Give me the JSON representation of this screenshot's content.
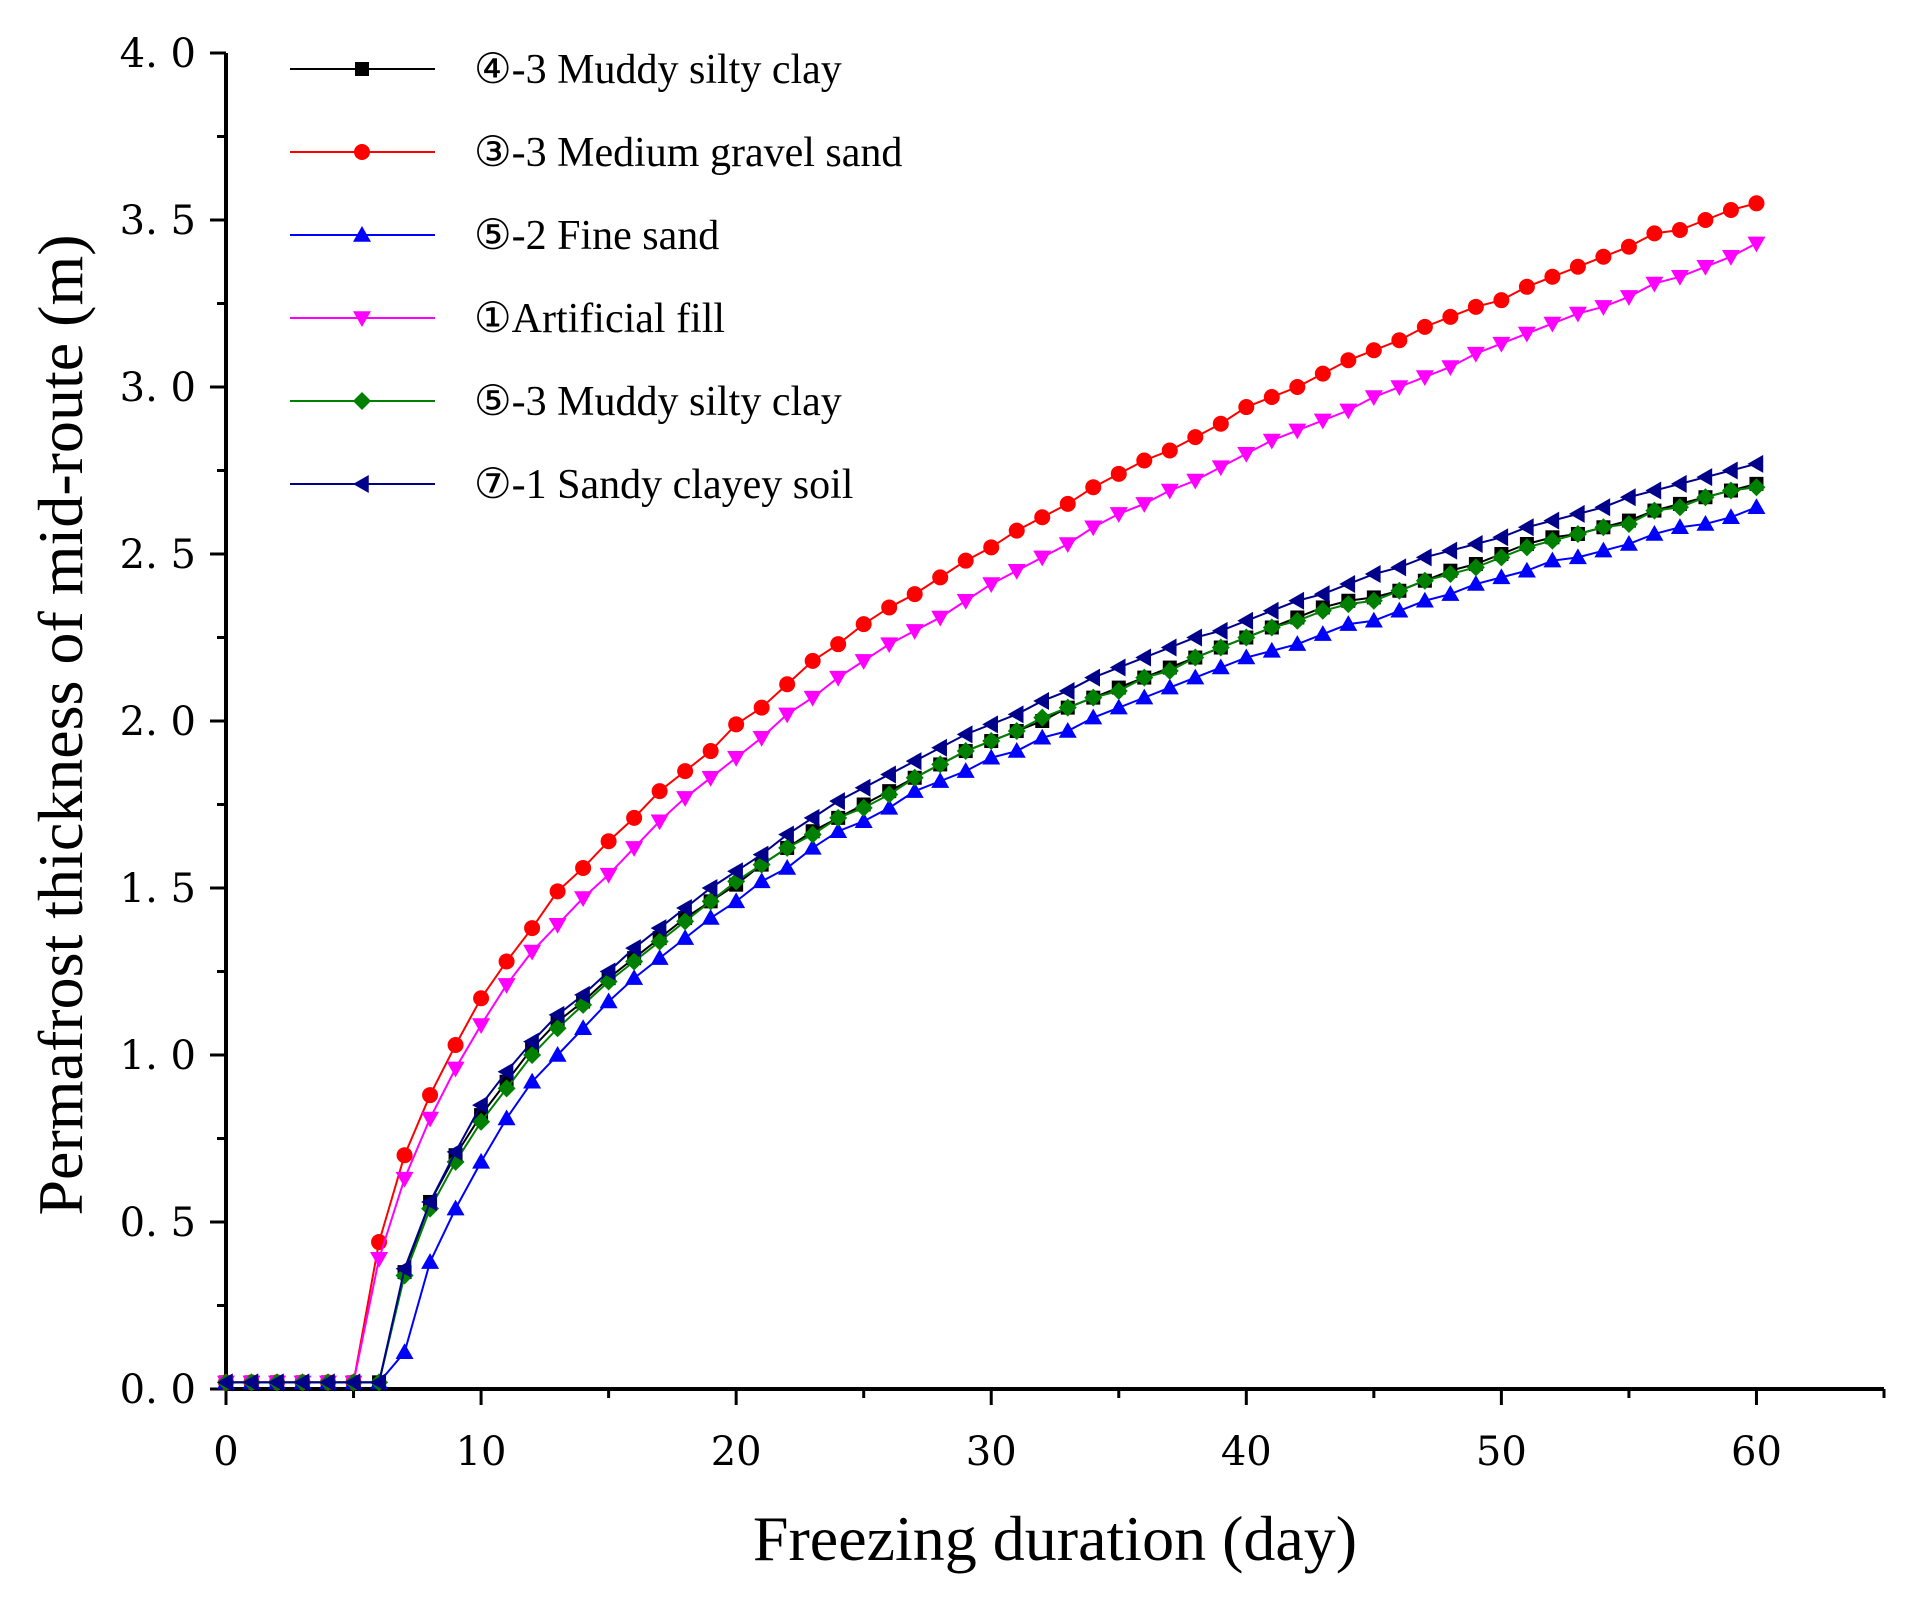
{
  "chart_data": {
    "type": "line",
    "title": "",
    "xlabel": "Freezing duration (day)",
    "ylabel": "Permafrost thickness of mid-route (m)",
    "xlim": [
      0,
      65
    ],
    "ylim": [
      0,
      4
    ],
    "x_ticks": [
      "0",
      "10",
      "20",
      "30",
      "40",
      "50",
      "60"
    ],
    "y_ticks": [
      "0. 0",
      "0. 5",
      "1. 0",
      "1. 5",
      "2. 0",
      "2. 5",
      "3. 0",
      "3. 5",
      "4. 0"
    ],
    "grid": false,
    "legend_position": "top-left",
    "series": [
      {
        "name": "④-3 Muddy silty clay",
        "color": "#000000",
        "marker": "square",
        "x": [
          0,
          1,
          2,
          3,
          4,
          5,
          6,
          7,
          8,
          9,
          10,
          11,
          12,
          13,
          14,
          15,
          16,
          17,
          18,
          19,
          20,
          21,
          22,
          23,
          24,
          25,
          26,
          27,
          28,
          29,
          30,
          31,
          32,
          33,
          34,
          35,
          36,
          37,
          38,
          39,
          40,
          41,
          42,
          43,
          44,
          45,
          46,
          47,
          48,
          49,
          50,
          51,
          52,
          53,
          54,
          55,
          56,
          57,
          58,
          59,
          60
        ],
        "values": [
          0.02,
          0.02,
          0.02,
          0.02,
          0.02,
          0.02,
          0.02,
          0.35,
          0.56,
          0.7,
          0.82,
          0.92,
          1.02,
          1.1,
          1.16,
          1.23,
          1.29,
          1.35,
          1.41,
          1.46,
          1.51,
          1.57,
          1.62,
          1.67,
          1.71,
          1.75,
          1.79,
          1.83,
          1.87,
          1.91,
          1.94,
          1.97,
          2.0,
          2.04,
          2.07,
          2.1,
          2.13,
          2.16,
          2.19,
          2.22,
          2.25,
          2.28,
          2.31,
          2.34,
          2.36,
          2.37,
          2.39,
          2.42,
          2.45,
          2.47,
          2.5,
          2.53,
          2.55,
          2.56,
          2.58,
          2.6,
          2.63,
          2.65,
          2.67,
          2.69,
          2.71
        ]
      },
      {
        "name": "③-3 Medium gravel sand",
        "color": "#ff0000",
        "marker": "circle",
        "x": [
          0,
          1,
          2,
          3,
          4,
          5,
          6,
          7,
          8,
          9,
          10,
          11,
          12,
          13,
          14,
          15,
          16,
          17,
          18,
          19,
          20,
          21,
          22,
          23,
          24,
          25,
          26,
          27,
          28,
          29,
          30,
          31,
          32,
          33,
          34,
          35,
          36,
          37,
          38,
          39,
          40,
          41,
          42,
          43,
          44,
          45,
          46,
          47,
          48,
          49,
          50,
          51,
          52,
          53,
          54,
          55,
          56,
          57,
          58,
          59,
          60
        ],
        "values": [
          0.02,
          0.02,
          0.02,
          0.02,
          0.02,
          0.02,
          0.44,
          0.7,
          0.88,
          1.03,
          1.17,
          1.28,
          1.38,
          1.49,
          1.56,
          1.64,
          1.71,
          1.79,
          1.85,
          1.91,
          1.99,
          2.04,
          2.11,
          2.18,
          2.23,
          2.29,
          2.34,
          2.38,
          2.43,
          2.48,
          2.52,
          2.57,
          2.61,
          2.65,
          2.7,
          2.74,
          2.78,
          2.81,
          2.85,
          2.89,
          2.94,
          2.97,
          3.0,
          3.04,
          3.08,
          3.11,
          3.14,
          3.18,
          3.21,
          3.24,
          3.26,
          3.3,
          3.33,
          3.36,
          3.39,
          3.42,
          3.46,
          3.47,
          3.5,
          3.53,
          3.55
        ]
      },
      {
        "name": "⑤-2 Fine sand",
        "color": "#0000ff",
        "marker": "triangle-up",
        "x": [
          0,
          1,
          2,
          3,
          4,
          5,
          6,
          7,
          8,
          9,
          10,
          11,
          12,
          13,
          14,
          15,
          16,
          17,
          18,
          19,
          20,
          21,
          22,
          23,
          24,
          25,
          26,
          27,
          28,
          29,
          30,
          31,
          32,
          33,
          34,
          35,
          36,
          37,
          38,
          39,
          40,
          41,
          42,
          43,
          44,
          45,
          46,
          47,
          48,
          49,
          50,
          51,
          52,
          53,
          54,
          55,
          56,
          57,
          58,
          59,
          60
        ],
        "values": [
          0.02,
          0.02,
          0.02,
          0.02,
          0.02,
          0.02,
          0.02,
          0.11,
          0.38,
          0.54,
          0.68,
          0.81,
          0.92,
          1.0,
          1.08,
          1.16,
          1.23,
          1.29,
          1.35,
          1.41,
          1.46,
          1.52,
          1.56,
          1.62,
          1.67,
          1.7,
          1.74,
          1.79,
          1.82,
          1.85,
          1.89,
          1.91,
          1.95,
          1.97,
          2.01,
          2.04,
          2.07,
          2.1,
          2.13,
          2.16,
          2.19,
          2.21,
          2.23,
          2.26,
          2.29,
          2.3,
          2.33,
          2.36,
          2.38,
          2.41,
          2.43,
          2.45,
          2.48,
          2.49,
          2.51,
          2.53,
          2.56,
          2.58,
          2.59,
          2.61,
          2.64
        ]
      },
      {
        "name": "①Artificial fill",
        "color": "#ff00ff",
        "marker": "triangle-down",
        "x": [
          0,
          1,
          2,
          3,
          4,
          5,
          6,
          7,
          8,
          9,
          10,
          11,
          12,
          13,
          14,
          15,
          16,
          17,
          18,
          19,
          20,
          21,
          22,
          23,
          24,
          25,
          26,
          27,
          28,
          29,
          30,
          31,
          32,
          33,
          34,
          35,
          36,
          37,
          38,
          39,
          40,
          41,
          42,
          43,
          44,
          45,
          46,
          47,
          48,
          49,
          50,
          51,
          52,
          53,
          54,
          55,
          56,
          57,
          58,
          59,
          60
        ],
        "values": [
          0.02,
          0.02,
          0.02,
          0.02,
          0.02,
          0.02,
          0.39,
          0.63,
          0.81,
          0.96,
          1.09,
          1.21,
          1.31,
          1.39,
          1.47,
          1.54,
          1.62,
          1.7,
          1.77,
          1.83,
          1.89,
          1.95,
          2.02,
          2.07,
          2.13,
          2.18,
          2.23,
          2.27,
          2.31,
          2.36,
          2.41,
          2.45,
          2.49,
          2.53,
          2.58,
          2.62,
          2.65,
          2.69,
          2.72,
          2.76,
          2.8,
          2.84,
          2.87,
          2.9,
          2.93,
          2.97,
          3.0,
          3.03,
          3.06,
          3.1,
          3.13,
          3.16,
          3.19,
          3.22,
          3.24,
          3.27,
          3.31,
          3.33,
          3.36,
          3.39,
          3.43
        ]
      },
      {
        "name": "⑤-3 Muddy silty clay",
        "color": "#008000",
        "marker": "diamond",
        "x": [
          0,
          1,
          2,
          3,
          4,
          5,
          6,
          7,
          8,
          9,
          10,
          11,
          12,
          13,
          14,
          15,
          16,
          17,
          18,
          19,
          20,
          21,
          22,
          23,
          24,
          25,
          26,
          27,
          28,
          29,
          30,
          31,
          32,
          33,
          34,
          35,
          36,
          37,
          38,
          39,
          40,
          41,
          42,
          43,
          44,
          45,
          46,
          47,
          48,
          49,
          50,
          51,
          52,
          53,
          54,
          55,
          56,
          57,
          58,
          59,
          60
        ],
        "values": [
          0.02,
          0.02,
          0.02,
          0.02,
          0.02,
          0.02,
          0.02,
          0.34,
          0.54,
          0.68,
          0.8,
          0.9,
          1.0,
          1.08,
          1.15,
          1.22,
          1.28,
          1.34,
          1.4,
          1.46,
          1.52,
          1.57,
          1.62,
          1.66,
          1.71,
          1.74,
          1.78,
          1.83,
          1.87,
          1.91,
          1.94,
          1.97,
          2.01,
          2.04,
          2.07,
          2.09,
          2.13,
          2.15,
          2.19,
          2.22,
          2.25,
          2.28,
          2.3,
          2.33,
          2.35,
          2.36,
          2.39,
          2.42,
          2.44,
          2.46,
          2.49,
          2.52,
          2.54,
          2.56,
          2.58,
          2.59,
          2.63,
          2.64,
          2.67,
          2.69,
          2.7
        ]
      },
      {
        "name": "⑦-1 Sandy clayey soil",
        "color": "#00008b",
        "marker": "triangle-left",
        "x": [
          0,
          1,
          2,
          3,
          4,
          5,
          6,
          7,
          8,
          9,
          10,
          11,
          12,
          13,
          14,
          15,
          16,
          17,
          18,
          19,
          20,
          21,
          22,
          23,
          24,
          25,
          26,
          27,
          28,
          29,
          30,
          31,
          32,
          33,
          34,
          35,
          36,
          37,
          38,
          39,
          40,
          41,
          42,
          43,
          44,
          45,
          46,
          47,
          48,
          49,
          50,
          51,
          52,
          53,
          54,
          55,
          56,
          57,
          58,
          59,
          60
        ],
        "values": [
          0.02,
          0.02,
          0.02,
          0.02,
          0.02,
          0.02,
          0.02,
          0.36,
          0.56,
          0.71,
          0.85,
          0.95,
          1.04,
          1.12,
          1.18,
          1.25,
          1.32,
          1.38,
          1.44,
          1.5,
          1.55,
          1.6,
          1.66,
          1.71,
          1.76,
          1.8,
          1.84,
          1.88,
          1.92,
          1.96,
          1.99,
          2.02,
          2.06,
          2.09,
          2.13,
          2.16,
          2.19,
          2.22,
          2.25,
          2.27,
          2.3,
          2.33,
          2.36,
          2.38,
          2.41,
          2.44,
          2.46,
          2.49,
          2.51,
          2.53,
          2.55,
          2.58,
          2.6,
          2.62,
          2.64,
          2.67,
          2.69,
          2.71,
          2.73,
          2.75,
          2.77
        ]
      }
    ]
  }
}
